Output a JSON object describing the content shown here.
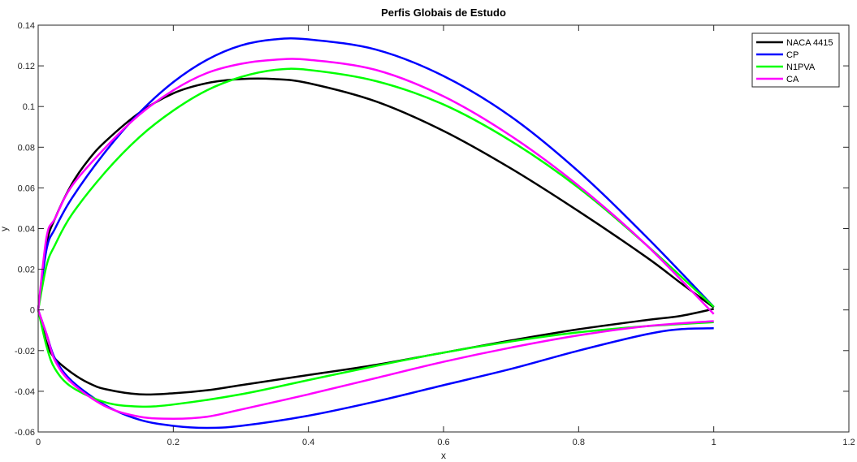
{
  "chart_data": {
    "type": "line",
    "title": "Perfis Globais de Estudo",
    "xlabel": "x",
    "ylabel": "y",
    "xlim": [
      0,
      1.2
    ],
    "ylim": [
      -0.06,
      0.14
    ],
    "xticks": [
      0,
      0.2,
      0.4,
      0.6,
      0.8,
      1,
      1.2
    ],
    "xtick_labels": [
      "0",
      "0.2",
      "0.4",
      "0.6",
      "0.8",
      "1",
      "1.2"
    ],
    "yticks": [
      -0.06,
      -0.04,
      -0.02,
      0,
      0.02,
      0.04,
      0.06,
      0.08,
      0.1,
      0.12,
      0.14
    ],
    "ytick_labels": [
      "-0.06",
      "-0.04",
      "-0.02",
      "0",
      "0.02",
      "0.04",
      "0.06",
      "0.08",
      "0.1",
      "0.12",
      "0.14"
    ],
    "grid": false,
    "legend_position": "top-right",
    "series": [
      {
        "name": "NACA 4415",
        "color": "#000000",
        "upper": [
          [
            0,
            0
          ],
          [
            0.0125,
            0.0325
          ],
          [
            0.025,
            0.045
          ],
          [
            0.05,
            0.062
          ],
          [
            0.075,
            0.074
          ],
          [
            0.1,
            0.083
          ],
          [
            0.15,
            0.097
          ],
          [
            0.2,
            0.1065
          ],
          [
            0.25,
            0.1115
          ],
          [
            0.3,
            0.1135
          ],
          [
            0.35,
            0.1135
          ],
          [
            0.4,
            0.1115
          ],
          [
            0.5,
            0.1025
          ],
          [
            0.6,
            0.088
          ],
          [
            0.7,
            0.0695
          ],
          [
            0.8,
            0.0485
          ],
          [
            0.9,
            0.026
          ],
          [
            0.95,
            0.0135
          ],
          [
            1.0,
            0.0012
          ]
        ],
        "lower": [
          [
            0,
            0
          ],
          [
            0.0125,
            -0.016
          ],
          [
            0.025,
            -0.024
          ],
          [
            0.05,
            -0.031
          ],
          [
            0.075,
            -0.036
          ],
          [
            0.1,
            -0.039
          ],
          [
            0.15,
            -0.0415
          ],
          [
            0.2,
            -0.041
          ],
          [
            0.25,
            -0.0395
          ],
          [
            0.3,
            -0.037
          ],
          [
            0.4,
            -0.032
          ],
          [
            0.5,
            -0.027
          ],
          [
            0.6,
            -0.021
          ],
          [
            0.7,
            -0.015
          ],
          [
            0.8,
            -0.0095
          ],
          [
            0.9,
            -0.005
          ],
          [
            0.95,
            -0.003
          ],
          [
            1.0,
            0.0005
          ]
        ]
      },
      {
        "name": "CP",
        "color": "#0000ff",
        "upper": [
          [
            0,
            0
          ],
          [
            0.0125,
            0.03
          ],
          [
            0.025,
            0.04
          ],
          [
            0.05,
            0.055
          ],
          [
            0.1,
            0.078
          ],
          [
            0.15,
            0.097
          ],
          [
            0.2,
            0.112
          ],
          [
            0.25,
            0.123
          ],
          [
            0.3,
            0.13
          ],
          [
            0.35,
            0.133
          ],
          [
            0.4,
            0.133
          ],
          [
            0.5,
            0.128
          ],
          [
            0.6,
            0.115
          ],
          [
            0.7,
            0.095
          ],
          [
            0.8,
            0.068
          ],
          [
            0.9,
            0.036
          ],
          [
            1.0,
            0.0015
          ]
        ],
        "lower": [
          [
            0,
            0
          ],
          [
            0.0125,
            -0.012
          ],
          [
            0.025,
            -0.024
          ],
          [
            0.05,
            -0.035
          ],
          [
            0.1,
            -0.047
          ],
          [
            0.15,
            -0.054
          ],
          [
            0.2,
            -0.057
          ],
          [
            0.25,
            -0.058
          ],
          [
            0.3,
            -0.057
          ],
          [
            0.4,
            -0.052
          ],
          [
            0.5,
            -0.045
          ],
          [
            0.6,
            -0.037
          ],
          [
            0.7,
            -0.029
          ],
          [
            0.8,
            -0.02
          ],
          [
            0.9,
            -0.012
          ],
          [
            0.95,
            -0.0095
          ],
          [
            1.0,
            -0.009
          ]
        ]
      },
      {
        "name": "N1PVA",
        "color": "#00ff00",
        "upper": [
          [
            0,
            0
          ],
          [
            0.0125,
            0.022
          ],
          [
            0.025,
            0.032
          ],
          [
            0.05,
            0.047
          ],
          [
            0.1,
            0.068
          ],
          [
            0.15,
            0.085
          ],
          [
            0.2,
            0.098
          ],
          [
            0.25,
            0.108
          ],
          [
            0.3,
            0.1145
          ],
          [
            0.35,
            0.118
          ],
          [
            0.4,
            0.118
          ],
          [
            0.5,
            0.1125
          ],
          [
            0.6,
            0.101
          ],
          [
            0.7,
            0.083
          ],
          [
            0.8,
            0.06
          ],
          [
            0.9,
            0.032
          ],
          [
            1.0,
            0.0015
          ]
        ],
        "lower": [
          [
            0,
            0
          ],
          [
            0.0125,
            -0.018
          ],
          [
            0.025,
            -0.029
          ],
          [
            0.05,
            -0.038
          ],
          [
            0.1,
            -0.0455
          ],
          [
            0.15,
            -0.0475
          ],
          [
            0.2,
            -0.0465
          ],
          [
            0.3,
            -0.0415
          ],
          [
            0.4,
            -0.0345
          ],
          [
            0.5,
            -0.0275
          ],
          [
            0.6,
            -0.021
          ],
          [
            0.7,
            -0.0155
          ],
          [
            0.8,
            -0.011
          ],
          [
            0.9,
            -0.008
          ],
          [
            1.0,
            -0.006
          ]
        ]
      },
      {
        "name": "CA",
        "color": "#ff00ff",
        "upper": [
          [
            0,
            0
          ],
          [
            0.0125,
            0.036
          ],
          [
            0.025,
            0.045
          ],
          [
            0.05,
            0.061
          ],
          [
            0.1,
            0.08
          ],
          [
            0.15,
            0.096
          ],
          [
            0.2,
            0.108
          ],
          [
            0.25,
            0.1165
          ],
          [
            0.3,
            0.121
          ],
          [
            0.35,
            0.123
          ],
          [
            0.4,
            0.123
          ],
          [
            0.5,
            0.118
          ],
          [
            0.6,
            0.105
          ],
          [
            0.7,
            0.0855
          ],
          [
            0.8,
            0.061
          ],
          [
            0.9,
            0.032
          ],
          [
            1.0,
            -0.002
          ]
        ],
        "lower": [
          [
            0,
            0
          ],
          [
            0.0125,
            -0.012
          ],
          [
            0.025,
            -0.025
          ],
          [
            0.05,
            -0.036
          ],
          [
            0.1,
            -0.0475
          ],
          [
            0.15,
            -0.0525
          ],
          [
            0.2,
            -0.0535
          ],
          [
            0.25,
            -0.0525
          ],
          [
            0.3,
            -0.049
          ],
          [
            0.4,
            -0.0415
          ],
          [
            0.5,
            -0.0335
          ],
          [
            0.6,
            -0.0255
          ],
          [
            0.7,
            -0.0185
          ],
          [
            0.8,
            -0.0125
          ],
          [
            0.9,
            -0.008
          ],
          [
            1.0,
            -0.0055
          ]
        ]
      }
    ]
  }
}
